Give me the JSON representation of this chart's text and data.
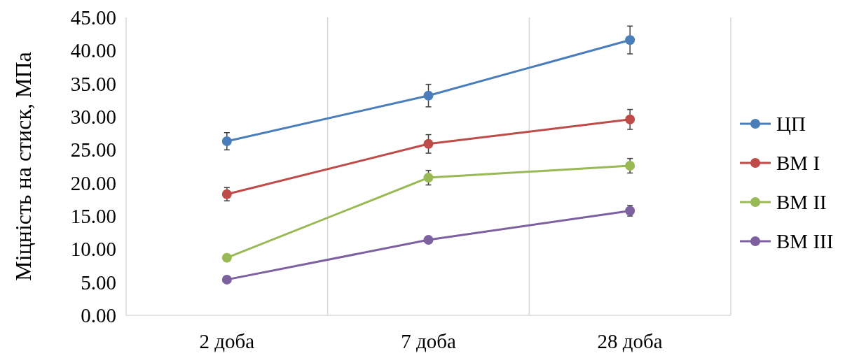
{
  "chart_data": {
    "type": "line",
    "ylabel": "Міцність на стиск, МПа",
    "categories": [
      "2 доба",
      "7 доба",
      "28 доба"
    ],
    "series": [
      {
        "name": "ЦП",
        "color": "#4a7ebb",
        "values": [
          26.3,
          33.2,
          41.6
        ],
        "errors": [
          1.3,
          1.7,
          2.1
        ]
      },
      {
        "name": "ВМ I",
        "color": "#be4b48",
        "values": [
          18.3,
          25.9,
          29.6
        ],
        "errors": [
          1.0,
          1.4,
          1.5
        ]
      },
      {
        "name": "ВМ II",
        "color": "#98b954",
        "values": [
          8.7,
          20.8,
          22.6
        ],
        "errors": [
          null,
          1.1,
          1.1
        ]
      },
      {
        "name": "ВМ III",
        "color": "#7d60a0",
        "values": [
          5.4,
          11.4,
          15.8
        ],
        "errors": [
          null,
          null,
          0.8
        ]
      }
    ],
    "ylim": [
      0,
      45
    ],
    "yticks": [
      {
        "value": 0,
        "label": "0.00"
      },
      {
        "value": 5,
        "label": "5.00"
      },
      {
        "value": 10,
        "label": "10.00"
      },
      {
        "value": 15,
        "label": "15.00"
      },
      {
        "value": 20,
        "label": "20.00"
      },
      {
        "value": 25,
        "label": "25.00"
      },
      {
        "value": 30,
        "label": "30.00"
      },
      {
        "value": 35,
        "label": "35.00"
      },
      {
        "value": 40,
        "label": "40.00"
      },
      {
        "value": 45,
        "label": "45.00"
      }
    ],
    "grid": "x",
    "legend": "right",
    "marker": "circle",
    "line_style": "solid"
  }
}
